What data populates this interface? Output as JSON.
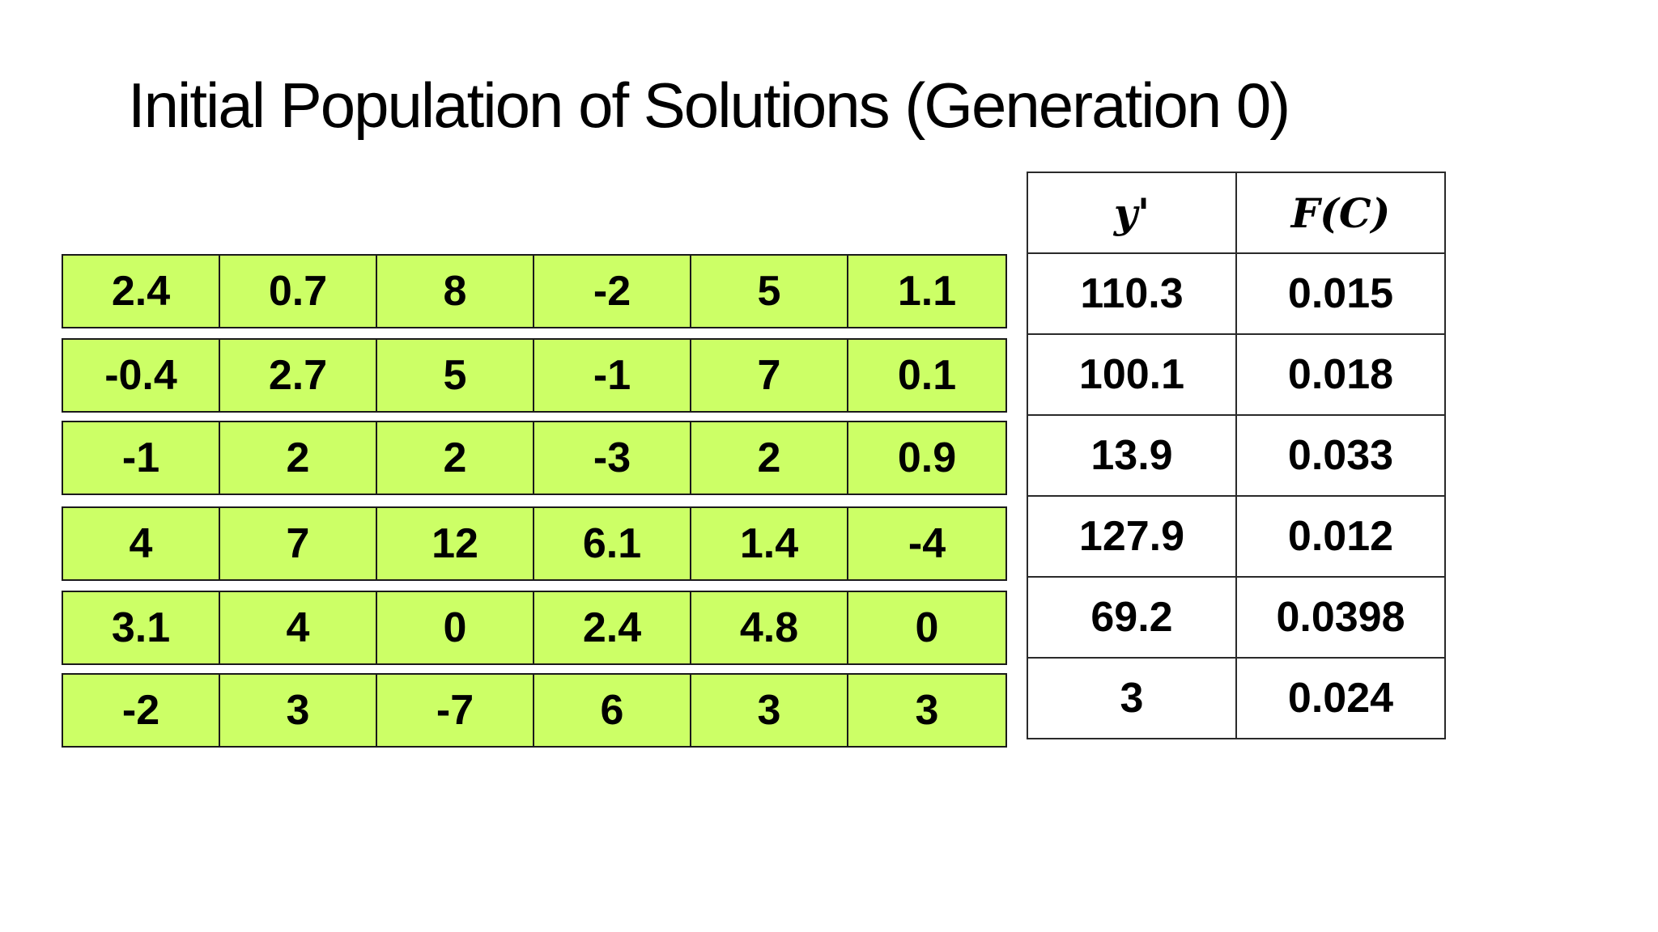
{
  "title": "Initial Population of Solutions (Generation 0)",
  "population": [
    [
      "2.4",
      "0.7",
      "8",
      "-2",
      "5",
      "1.1"
    ],
    [
      "-0.4",
      "2.7",
      "5",
      "-1",
      "7",
      "0.1"
    ],
    [
      "-1",
      "2",
      "2",
      "-3",
      "2",
      "0.9"
    ],
    [
      "4",
      "7",
      "12",
      "6.1",
      "1.4",
      "-4"
    ],
    [
      "3.1",
      "4",
      "0",
      "2.4",
      "4.8",
      "0"
    ],
    [
      "-2",
      "3",
      "-7",
      "6",
      "3",
      "3"
    ]
  ],
  "fitness_table": {
    "headers": [
      "y'",
      "F(C)"
    ],
    "rows": [
      [
        "110.3",
        "0.015"
      ],
      [
        "100.1",
        "0.018"
      ],
      [
        "13.9",
        "0.033"
      ],
      [
        "127.9",
        "0.012"
      ],
      [
        "69.2",
        "0.0398"
      ],
      [
        "3",
        "0.024"
      ]
    ]
  },
  "colors": {
    "gene_fill": "#ccff66",
    "border": "#1a1a1a",
    "background": "#ffffff",
    "text": "#000000"
  }
}
